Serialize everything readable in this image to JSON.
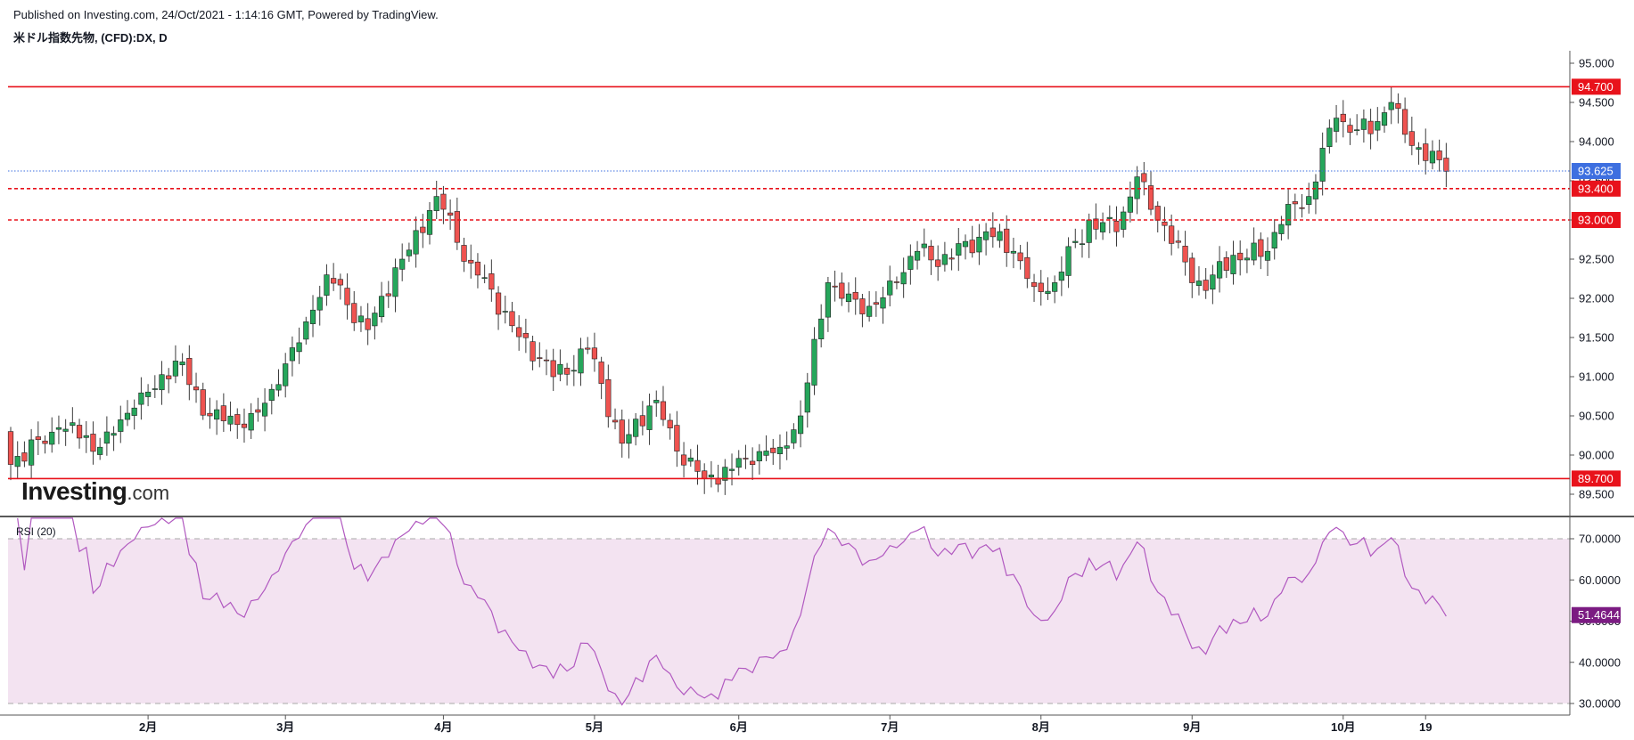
{
  "header": {
    "published": "Published on Investing.com, 24/Oct/2021 - 1:14:16 GMT, Powered by TradingView.",
    "symbol": "米ドル指数先物, (CFD):DX, D"
  },
  "logo": {
    "main": "Investing",
    "suffix": ".com"
  },
  "colors": {
    "up": "#26a65b",
    "down": "#ef5350",
    "wick": "#3b3b3b",
    "level": "#e8121b",
    "last_price": "#3d6fe0",
    "rsi_line": "#b159c0",
    "rsi_fill": "#f3e3f1",
    "rsi_badge": "#7b1b82"
  },
  "chart_data": [
    {
      "type": "candlestick",
      "title": "米ドル指数先物, (CFD):DX, D",
      "y_axis": {
        "min": 89.5,
        "max": 95.0,
        "ticks": [
          "89.500",
          "90.000",
          "90.500",
          "91.000",
          "91.500",
          "92.000",
          "92.500",
          "93.000",
          "93.500",
          "94.000",
          "94.500",
          "95.000"
        ]
      },
      "x_axis": {
        "ticks": [
          "2月",
          "3月",
          "4月",
          "5月",
          "6月",
          "7月",
          "8月",
          "9月",
          "10月",
          "19"
        ]
      },
      "grid": false,
      "horizontal_levels": [
        {
          "value": 94.7,
          "label": "94.700",
          "style": "solid"
        },
        {
          "value": 93.4,
          "label": "93.400",
          "style": "dashed"
        },
        {
          "value": 93.0,
          "label": "93.000",
          "style": "dashed"
        },
        {
          "value": 89.7,
          "label": "89.700",
          "style": "solid"
        }
      ],
      "last_price": {
        "value": 93.625,
        "label": "93.625"
      },
      "anchor_closes": [
        [
          "2021-01-04",
          89.88
        ],
        [
          "2021-01-13",
          90.35
        ],
        [
          "2021-01-21",
          90.1
        ],
        [
          "2021-01-28",
          90.6
        ],
        [
          "2021-02-05",
          91.2
        ],
        [
          "2021-02-12",
          90.5
        ],
        [
          "2021-02-19",
          90.35
        ],
        [
          "2021-02-26",
          90.9
        ],
        [
          "2021-03-05",
          91.85
        ],
        [
          "2021-03-09",
          92.3
        ],
        [
          "2021-03-17",
          91.6
        ],
        [
          "2021-03-24",
          92.5
        ],
        [
          "2021-03-31",
          93.3
        ],
        [
          "2021-04-07",
          92.45
        ],
        [
          "2021-04-15",
          91.65
        ],
        [
          "2021-04-23",
          91.0
        ],
        [
          "2021-04-30",
          91.35
        ],
        [
          "2021-05-07",
          90.15
        ],
        [
          "2021-05-14",
          90.7
        ],
        [
          "2021-05-19",
          90.05
        ],
        [
          "2021-05-25",
          89.7
        ],
        [
          "2021-06-02",
          89.95
        ],
        [
          "2021-06-09",
          90.1
        ],
        [
          "2021-06-14",
          90.5
        ],
        [
          "2021-06-18",
          92.2
        ],
        [
          "2021-06-25",
          91.8
        ],
        [
          "2021-07-02",
          92.2
        ],
        [
          "2021-07-07",
          92.6
        ],
        [
          "2021-07-14",
          92.5
        ],
        [
          "2021-07-21",
          92.85
        ],
        [
          "2021-07-27",
          92.6
        ],
        [
          "2021-07-30",
          92.15
        ],
        [
          "2021-08-04",
          92.2
        ],
        [
          "2021-08-11",
          93.0
        ],
        [
          "2021-08-17",
          92.85
        ],
        [
          "2021-08-20",
          93.55
        ],
        [
          "2021-08-27",
          92.7
        ],
        [
          "2021-09-03",
          92.1
        ],
        [
          "2021-09-09",
          92.55
        ],
        [
          "2021-09-16",
          92.6
        ],
        [
          "2021-09-21",
          93.2
        ],
        [
          "2021-09-24",
          93.3
        ],
        [
          "2021-09-30",
          94.3
        ],
        [
          "2021-10-07",
          94.1
        ],
        [
          "2021-10-12",
          94.5
        ],
        [
          "2021-10-15",
          93.95
        ],
        [
          "2021-10-22",
          93.62
        ]
      ],
      "rsi": {
        "label": "RSI (20)",
        "period": 20,
        "y_ticks": [
          "30.0000",
          "40.0000",
          "50.0000",
          "60.0000",
          "70.0000"
        ],
        "bands": [
          30,
          70
        ],
        "last_value": 51.4644,
        "last_label": "51.4644"
      }
    }
  ]
}
